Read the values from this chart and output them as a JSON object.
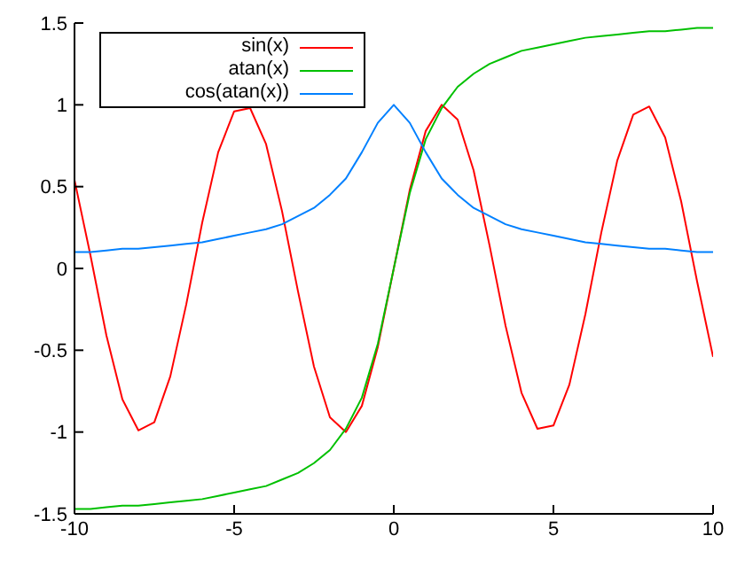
{
  "chart_data": {
    "type": "line",
    "x": [
      -10,
      -9.5,
      -9,
      -8.5,
      -8,
      -7.5,
      -7,
      -6.5,
      -6,
      -5.5,
      -5,
      -4.5,
      -4,
      -3.5,
      -3,
      -2.5,
      -2,
      -1.5,
      -1,
      -0.5,
      0,
      0.5,
      1,
      1.5,
      2,
      2.5,
      3,
      3.5,
      4,
      4.5,
      5,
      5.5,
      6,
      6.5,
      7,
      7.5,
      8,
      8.5,
      9,
      9.5,
      10
    ],
    "series": [
      {
        "name": "sin(x)",
        "color": "#ff0000",
        "values": [
          0.54,
          0.08,
          -0.41,
          -0.8,
          -0.99,
          -0.94,
          -0.66,
          -0.22,
          0.28,
          0.71,
          0.96,
          0.98,
          0.76,
          0.35,
          -0.14,
          -0.6,
          -0.91,
          -1.0,
          -0.84,
          -0.48,
          0,
          0.48,
          0.84,
          1.0,
          0.91,
          0.6,
          0.14,
          -0.35,
          -0.76,
          -0.98,
          -0.96,
          -0.71,
          -0.28,
          0.22,
          0.66,
          0.94,
          0.99,
          0.8,
          0.41,
          -0.08,
          -0.54
        ]
      },
      {
        "name": "atan(x)",
        "color": "#00c000",
        "values": [
          -1.47,
          -1.47,
          -1.46,
          -1.45,
          -1.45,
          -1.44,
          -1.43,
          -1.42,
          -1.41,
          -1.39,
          -1.37,
          -1.35,
          -1.33,
          -1.29,
          -1.25,
          -1.19,
          -1.11,
          -0.98,
          -0.79,
          -0.46,
          0,
          0.46,
          0.79,
          0.98,
          1.11,
          1.19,
          1.25,
          1.29,
          1.33,
          1.35,
          1.37,
          1.39,
          1.41,
          1.42,
          1.43,
          1.44,
          1.45,
          1.45,
          1.46,
          1.47,
          1.47
        ]
      },
      {
        "name": "cos(atan(x))",
        "color": "#0080ff",
        "values": [
          0.1,
          0.1,
          0.11,
          0.12,
          0.12,
          0.13,
          0.14,
          0.15,
          0.16,
          0.18,
          0.2,
          0.22,
          0.24,
          0.27,
          0.32,
          0.37,
          0.45,
          0.55,
          0.71,
          0.89,
          1,
          0.89,
          0.71,
          0.55,
          0.45,
          0.37,
          0.32,
          0.27,
          0.24,
          0.22,
          0.2,
          0.18,
          0.16,
          0.15,
          0.14,
          0.13,
          0.12,
          0.12,
          0.11,
          0.1,
          0.1
        ]
      }
    ],
    "xlim": [
      -10,
      10
    ],
    "xticks": [
      -10,
      -5,
      0,
      5,
      10
    ],
    "ylim": [
      -1.5,
      1.5
    ],
    "yticks": [
      -1.5,
      -1,
      -0.5,
      0,
      0.5,
      1,
      1.5
    ],
    "grid": false,
    "legend": "top left",
    "marker": "none",
    "line_style": "solid"
  }
}
